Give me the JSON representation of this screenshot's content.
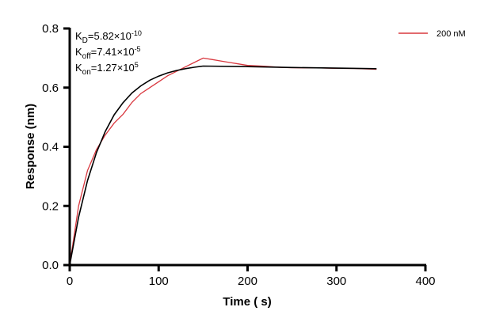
{
  "chart_data": {
    "type": "line",
    "title": "",
    "xlabel": "Time ( s)",
    "ylabel": "Response (nm)",
    "xlim": [
      0,
      400
    ],
    "ylim": [
      0,
      0.8
    ],
    "xticks": [
      0,
      100,
      200,
      300,
      400
    ],
    "yticks": [
      0.0,
      0.2,
      0.4,
      0.6,
      0.8
    ],
    "xtick_labels": [
      "0",
      "100",
      "200",
      "300",
      "400"
    ],
    "ytick_labels": [
      "0.0",
      "0.2",
      "0.4",
      "0.6",
      "0.8"
    ],
    "grid": false,
    "legend_position": "top-right",
    "annotations": {
      "kd": {
        "base": "K",
        "sub": "D",
        "text": "=5.82×10",
        "sup": "-10"
      },
      "koff": {
        "base": "K",
        "sub": "off",
        "text": "=7.41×10",
        "sup": "-5"
      },
      "kon": {
        "base": "K",
        "sub": "on",
        "text": "=1.27×10",
        "sup": "5"
      }
    },
    "series": [
      {
        "name": "200 nM",
        "color": "#d9383f",
        "x": [
          0,
          10,
          20,
          30,
          40,
          50,
          60,
          70,
          80,
          90,
          100,
          110,
          120,
          130,
          140,
          150,
          160,
          170,
          180,
          190,
          200,
          220,
          240,
          260,
          280,
          300,
          320,
          345
        ],
        "y": [
          0,
          0.2,
          0.32,
          0.39,
          0.44,
          0.48,
          0.51,
          0.55,
          0.58,
          0.6,
          0.62,
          0.64,
          0.655,
          0.67,
          0.685,
          0.7,
          0.695,
          0.69,
          0.685,
          0.68,
          0.675,
          0.672,
          0.668,
          0.667,
          0.667,
          0.665,
          0.665,
          0.662
        ]
      },
      {
        "color": "#000000",
        "x": [
          0,
          10,
          20,
          30,
          40,
          50,
          60,
          70,
          80,
          90,
          100,
          110,
          120,
          130,
          140,
          150,
          200,
          250,
          300,
          345
        ],
        "y": [
          0,
          0.162,
          0.286,
          0.38,
          0.452,
          0.508,
          0.549,
          0.582,
          0.606,
          0.625,
          0.639,
          0.65,
          0.658,
          0.664,
          0.669,
          0.673,
          0.671,
          0.668,
          0.666,
          0.664
        ]
      }
    ]
  }
}
